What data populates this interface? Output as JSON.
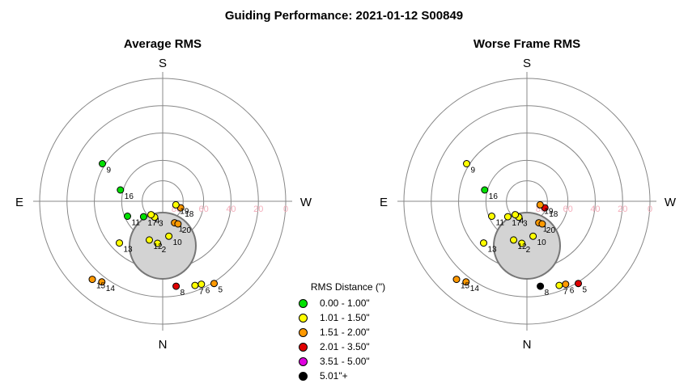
{
  "chart_data": {
    "type": "scatter",
    "title": "Guiding Performance: 2021-01-12 S00849",
    "directions": {
      "top": "S",
      "bottom": "N",
      "left": "E",
      "right": "W"
    },
    "radial_ticks": [
      {
        "label": "80",
        "value": 80
      },
      {
        "label": "60",
        "value": 60
      },
      {
        "label": "40",
        "value": 40
      },
      {
        "label": "20",
        "value": 20
      },
      {
        "label": "0",
        "value": 0
      }
    ],
    "colors": {
      "0.00-1.00": "#00e000",
      "1.01-1.50": "#ffff00",
      "1.51-2.00": "#ff9900",
      "2.01-3.50": "#e00000",
      "3.51-5.00": "#e000e0",
      "5.01+": "#000000"
    },
    "legend": {
      "title": "RMS Distance (\")",
      "entries": [
        {
          "label": "0.00 - 1.00\"",
          "color": "#00e000"
        },
        {
          "label": "1.01 - 1.50\"",
          "color": "#ffff00"
        },
        {
          "label": "1.51 - 2.00\"",
          "color": "#ff9900"
        },
        {
          "label": "2.01 - 3.50\"",
          "color": "#e00000"
        },
        {
          "label": "3.51 - 5.00\"",
          "color": "#e000e0"
        },
        {
          "label": "5.01\"+",
          "color": "#000000"
        }
      ]
    },
    "panels": [
      {
        "title": "Average RMS",
        "points": [
          {
            "id": "1",
            "az": 151,
            "alt": 72,
            "color": "#ff9900"
          },
          {
            "id": "2",
            "az": 187,
            "alt": 59,
            "color": "#ffff00"
          },
          {
            "id": "3",
            "az": 207,
            "alt": 77,
            "color": "#ffff00"
          },
          {
            "id": "4",
            "az": 221,
            "alt": 77,
            "color": "#ffff00"
          },
          {
            "id": "5",
            "az": 148,
            "alt": 19,
            "color": "#ff9900"
          },
          {
            "id": "6",
            "az": 155,
            "alt": 23,
            "color": "#ffff00"
          },
          {
            "id": "7",
            "az": 159,
            "alt": 24,
            "color": "#ffff00"
          },
          {
            "id": "8",
            "az": 171,
            "alt": 27,
            "color": "#e00000"
          },
          {
            "id": "9",
            "az": 302,
            "alt": 38,
            "color": "#00e000"
          },
          {
            "id": "10",
            "az": 170,
            "alt": 64,
            "color": "#ffff00"
          },
          {
            "id": "11",
            "az": 247,
            "alt": 62,
            "color": "#00e000"
          },
          {
            "id": "12",
            "az": 199,
            "alt": 60,
            "color": "#ffff00"
          },
          {
            "id": "13",
            "az": 226,
            "alt": 46,
            "color": "#ffff00"
          },
          {
            "id": "14",
            "az": 217,
            "alt": 16,
            "color": "#ff9900"
          },
          {
            "id": "15",
            "az": 222,
            "alt": 13,
            "color": "#ff9900"
          },
          {
            "id": "16",
            "az": 285,
            "alt": 58,
            "color": "#00e000"
          },
          {
            "id": "17",
            "az": 231,
            "alt": 72,
            "color": "#00e000"
          },
          {
            "id": "18",
            "az": 110,
            "alt": 76,
            "color": "#ff9900"
          },
          {
            "id": "19",
            "az": 105,
            "alt": 80,
            "color": "#ffff00"
          },
          {
            "id": "20",
            "az": 146,
            "alt": 70,
            "color": "#ff9900"
          }
        ]
      },
      {
        "title": "Worse Frame RMS",
        "points": [
          {
            "id": "1",
            "az": 151,
            "alt": 72,
            "color": "#ff9900"
          },
          {
            "id": "2",
            "az": 187,
            "alt": 59,
            "color": "#ffff00"
          },
          {
            "id": "3",
            "az": 207,
            "alt": 77,
            "color": "#ffff00"
          },
          {
            "id": "4",
            "az": 221,
            "alt": 77,
            "color": "#ffff00"
          },
          {
            "id": "5",
            "az": 148,
            "alt": 19,
            "color": "#e00000"
          },
          {
            "id": "6",
            "az": 155,
            "alt": 23,
            "color": "#ff9900"
          },
          {
            "id": "7",
            "az": 159,
            "alt": 24,
            "color": "#ffff00"
          },
          {
            "id": "8",
            "az": 171,
            "alt": 27,
            "color": "#000000"
          },
          {
            "id": "9",
            "az": 302,
            "alt": 38,
            "color": "#ffff00"
          },
          {
            "id": "10",
            "az": 170,
            "alt": 64,
            "color": "#ffff00"
          },
          {
            "id": "11",
            "az": 247,
            "alt": 62,
            "color": "#ffff00"
          },
          {
            "id": "12",
            "az": 199,
            "alt": 60,
            "color": "#ffff00"
          },
          {
            "id": "13",
            "az": 226,
            "alt": 46,
            "color": "#ffff00"
          },
          {
            "id": "14",
            "az": 217,
            "alt": 16,
            "color": "#ff9900"
          },
          {
            "id": "15",
            "az": 222,
            "alt": 13,
            "color": "#ff9900"
          },
          {
            "id": "16",
            "az": 285,
            "alt": 58,
            "color": "#00e000"
          },
          {
            "id": "17",
            "az": 231,
            "alt": 72,
            "color": "#ffff00"
          },
          {
            "id": "18",
            "az": 110,
            "alt": 76,
            "color": "#e00000"
          },
          {
            "id": "19",
            "az": 105,
            "alt": 80,
            "color": "#ff9900"
          },
          {
            "id": "20",
            "az": 146,
            "alt": 70,
            "color": "#ff9900"
          }
        ]
      }
    ]
  }
}
